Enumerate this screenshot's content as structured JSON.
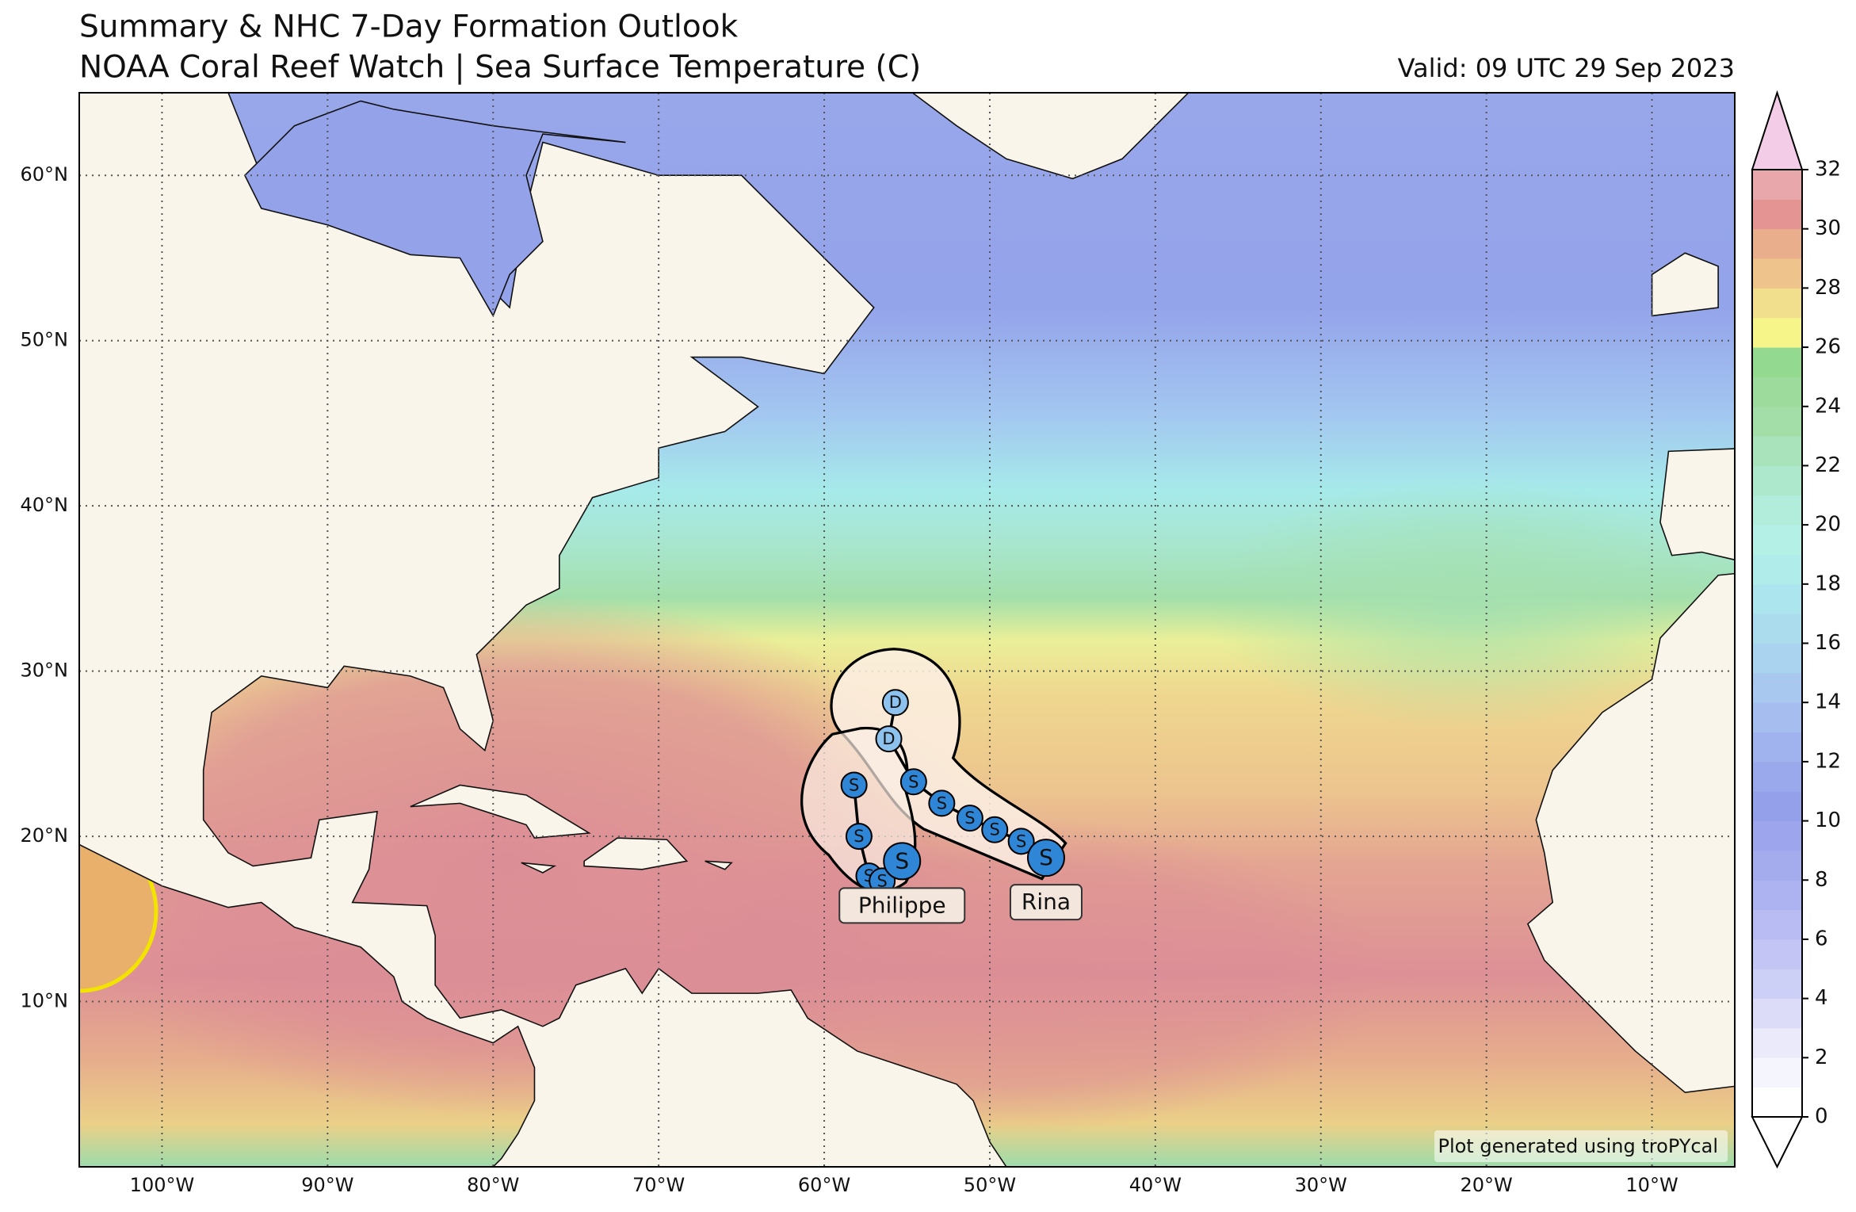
{
  "title": "Summary & NHC 7-Day Formation Outlook",
  "subtitle": "NOAA Coral Reef Watch | Sea Surface Temperature (C)",
  "valid": "Valid: 09 UTC 29 Sep 2023",
  "credit": "Plot generated using troPYcal",
  "map": {
    "lonlim": [
      -105,
      -5
    ],
    "latlim": [
      0,
      65
    ],
    "grid": true,
    "lon_ticks": [
      {
        "value": -100,
        "label": "100°W"
      },
      {
        "value": -90,
        "label": "90°W"
      },
      {
        "value": -80,
        "label": "80°W"
      },
      {
        "value": -70,
        "label": "70°W"
      },
      {
        "value": -60,
        "label": "60°W"
      },
      {
        "value": -50,
        "label": "50°W"
      },
      {
        "value": -40,
        "label": "40°W"
      },
      {
        "value": -30,
        "label": "30°W"
      },
      {
        "value": -20,
        "label": "20°W"
      },
      {
        "value": -10,
        "label": "10°W"
      }
    ],
    "lat_ticks": [
      {
        "value": 10,
        "label": "10°N"
      },
      {
        "value": 20,
        "label": "20°N"
      },
      {
        "value": 30,
        "label": "30°N"
      },
      {
        "value": 40,
        "label": "40°N"
      },
      {
        "value": 50,
        "label": "50°N"
      },
      {
        "value": 60,
        "label": "60°N"
      }
    ]
  },
  "colorbar": {
    "lim": [
      0,
      32
    ],
    "ticks": [
      0,
      2,
      4,
      6,
      8,
      10,
      12,
      14,
      16,
      18,
      20,
      22,
      24,
      26,
      28,
      30,
      32
    ],
    "colors": [
      "#ffffff",
      "#f5f5fd",
      "#eaeafb",
      "#dcdcf8",
      "#cdd0f6",
      "#c3c6f4",
      "#b8bcf2",
      "#adb3f0",
      "#a5acee",
      "#9da6ec",
      "#94a0ea",
      "#9aa9ec",
      "#a0b3ee",
      "#a6bdf0",
      "#a8c8f0",
      "#aad3ef",
      "#abdcee",
      "#ace5ed",
      "#b0ecea",
      "#b4f0e6",
      "#b2eddc",
      "#aee8cc",
      "#a9e3bb",
      "#a3dea9",
      "#9cdb9c",
      "#93d98f",
      "#f5f58a",
      "#f2df8e",
      "#eec48c",
      "#e9ae8c",
      "#e59494",
      "#e8a8ab"
    ],
    "over_color": "#f3cde8",
    "under_color": "#ffffff"
  },
  "storms": [
    {
      "name": "Philippe",
      "points": [
        {
          "lon": -55.3,
          "lat": 18.5,
          "type": "S"
        },
        {
          "lon": -56.5,
          "lat": 17.3,
          "type": "S"
        },
        {
          "lon": -57.3,
          "lat": 17.6,
          "type": "S"
        },
        {
          "lon": -57.9,
          "lat": 20.0,
          "type": "S"
        },
        {
          "lon": -58.2,
          "lat": 23.1,
          "type": "S"
        }
      ]
    },
    {
      "name": "Rina",
      "points": [
        {
          "lon": -46.6,
          "lat": 18.7,
          "type": "S"
        },
        {
          "lon": -48.1,
          "lat": 19.7,
          "type": "S"
        },
        {
          "lon": -49.7,
          "lat": 20.4,
          "type": "S"
        },
        {
          "lon": -51.2,
          "lat": 21.1,
          "type": "S"
        },
        {
          "lon": -52.9,
          "lat": 22.0,
          "type": "S"
        },
        {
          "lon": -54.6,
          "lat": 23.3,
          "type": "S"
        },
        {
          "lon": -56.1,
          "lat": 25.9,
          "type": "D"
        },
        {
          "lon": -55.7,
          "lat": 28.1,
          "type": "D"
        }
      ]
    }
  ]
}
